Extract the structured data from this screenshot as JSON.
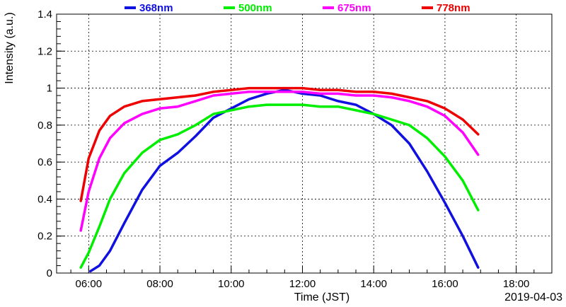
{
  "chart_data": {
    "type": "line",
    "xlabel": "Time (JST)",
    "ylabel": "Intensity (a.u.)",
    "date_label": "2019-04-03",
    "x_unit": "hour of day (JST)",
    "xlim": [
      5.1,
      19.0
    ],
    "ylim": [
      0,
      1.4
    ],
    "x_ticks": [
      {
        "value": 6,
        "label": "06:00"
      },
      {
        "value": 8,
        "label": "08:00"
      },
      {
        "value": 10,
        "label": "10:00"
      },
      {
        "value": 12,
        "label": "12:00"
      },
      {
        "value": 14,
        "label": "14:00"
      },
      {
        "value": 16,
        "label": "16:00"
      },
      {
        "value": 18,
        "label": "18:00"
      }
    ],
    "y_ticks": [
      {
        "value": 0,
        "label": "0"
      },
      {
        "value": 0.2,
        "label": "0.2"
      },
      {
        "value": 0.4,
        "label": "0.4"
      },
      {
        "value": 0.6,
        "label": "0.6"
      },
      {
        "value": 0.8,
        "label": "0.8"
      },
      {
        "value": 1.0,
        "label": "1"
      },
      {
        "value": 1.2,
        "label": "1.2"
      },
      {
        "value": 1.4,
        "label": "1.4"
      }
    ],
    "grid": true,
    "legend_position": "top",
    "series": [
      {
        "name": "368nm",
        "color": "#1010e0",
        "x": [
          6.05,
          6.3,
          6.6,
          7.0,
          7.5,
          8.0,
          8.5,
          9.0,
          9.5,
          10.0,
          10.5,
          11.0,
          11.5,
          12.0,
          12.5,
          13.0,
          13.5,
          14.0,
          14.5,
          15.0,
          15.5,
          16.0,
          16.5,
          16.93
        ],
        "y": [
          0.01,
          0.04,
          0.12,
          0.27,
          0.45,
          0.58,
          0.65,
          0.74,
          0.84,
          0.89,
          0.94,
          0.97,
          0.99,
          0.97,
          0.96,
          0.93,
          0.91,
          0.86,
          0.8,
          0.7,
          0.55,
          0.38,
          0.2,
          0.03
        ]
      },
      {
        "name": "500nm",
        "color": "#00ee00",
        "x": [
          5.78,
          6.0,
          6.3,
          6.6,
          7.0,
          7.5,
          8.0,
          8.5,
          9.0,
          9.5,
          10.0,
          10.5,
          11.0,
          11.5,
          12.0,
          12.5,
          13.0,
          13.5,
          14.0,
          14.5,
          15.0,
          15.5,
          16.0,
          16.5,
          16.93
        ],
        "y": [
          0.03,
          0.11,
          0.25,
          0.4,
          0.54,
          0.65,
          0.72,
          0.75,
          0.8,
          0.86,
          0.88,
          0.9,
          0.91,
          0.91,
          0.91,
          0.9,
          0.9,
          0.88,
          0.86,
          0.83,
          0.8,
          0.73,
          0.63,
          0.5,
          0.34
        ]
      },
      {
        "name": "675nm",
        "color": "#ff00ff",
        "x": [
          5.78,
          6.0,
          6.3,
          6.6,
          7.0,
          7.5,
          8.0,
          8.5,
          9.0,
          9.5,
          10.0,
          10.5,
          11.0,
          11.5,
          12.0,
          12.5,
          13.0,
          13.5,
          14.0,
          14.5,
          15.0,
          15.5,
          16.0,
          16.5,
          16.93
        ],
        "y": [
          0.23,
          0.44,
          0.62,
          0.73,
          0.81,
          0.86,
          0.89,
          0.9,
          0.93,
          0.96,
          0.97,
          0.98,
          0.98,
          0.98,
          0.98,
          0.97,
          0.97,
          0.96,
          0.96,
          0.95,
          0.93,
          0.9,
          0.85,
          0.76,
          0.64
        ]
      },
      {
        "name": "778nm",
        "color": "#ee0000",
        "x": [
          5.78,
          6.0,
          6.3,
          6.6,
          7.0,
          7.5,
          8.0,
          8.5,
          9.0,
          9.5,
          10.0,
          10.5,
          11.0,
          11.5,
          12.0,
          12.5,
          13.0,
          13.5,
          14.0,
          14.5,
          15.0,
          15.5,
          16.0,
          16.5,
          16.93
        ],
        "y": [
          0.39,
          0.62,
          0.77,
          0.85,
          0.9,
          0.93,
          0.94,
          0.95,
          0.96,
          0.98,
          0.99,
          1.0,
          1.0,
          1.0,
          1.0,
          0.99,
          0.99,
          0.98,
          0.98,
          0.97,
          0.95,
          0.93,
          0.89,
          0.83,
          0.75
        ]
      }
    ]
  }
}
